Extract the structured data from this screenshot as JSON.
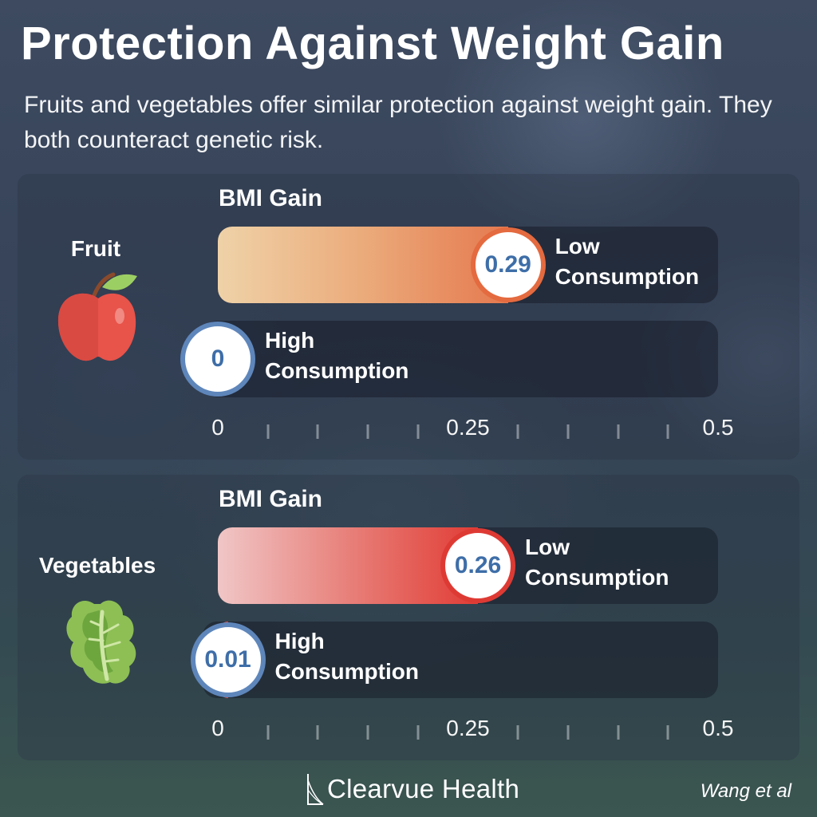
{
  "title": "Protection Against Weight Gain",
  "subtitle": "Fruits and vegetables offer similar protection against weight gain. They both counteract genetic risk.",
  "footer": {
    "brand": "Clearvue Health",
    "source": "Wang et al"
  },
  "colors": {
    "fruit_bar_start": "#efd2a8",
    "fruit_bar_end": "#e5794f",
    "veg_bar_start": "#f0c6c6",
    "veg_bar_end": "#e13c35",
    "value_text": "#3e6ea8",
    "high_ring": "#5e86bb"
  },
  "icons": {
    "fruit": "apple-icon",
    "vegetables": "lettuce-icon",
    "brand": "clearvue-logo-icon"
  },
  "chart_data": [
    {
      "type": "bar",
      "orientation": "horizontal",
      "panel_label": "Fruit",
      "axis_title": "BMI Gain",
      "xlim": [
        0,
        0.5
      ],
      "tick_labels": [
        "0",
        "0.25",
        "0.5"
      ],
      "grid": false,
      "series": [
        {
          "label_line1": "Low",
          "label_line2": "Consumption",
          "value": 0.29,
          "value_label": "0.29"
        },
        {
          "label_line1": "High",
          "label_line2": "Consumption",
          "value": 0,
          "value_label": "0"
        }
      ]
    },
    {
      "type": "bar",
      "orientation": "horizontal",
      "panel_label": "Vegetables",
      "axis_title": "BMI Gain",
      "xlim": [
        0,
        0.5
      ],
      "tick_labels": [
        "0",
        "0.25",
        "0.5"
      ],
      "grid": false,
      "series": [
        {
          "label_line1": "Low",
          "label_line2": "Consumption",
          "value": 0.26,
          "value_label": "0.26"
        },
        {
          "label_line1": "High",
          "label_line2": "Consumption",
          "value": 0.01,
          "value_label": "0.01"
        }
      ]
    }
  ]
}
